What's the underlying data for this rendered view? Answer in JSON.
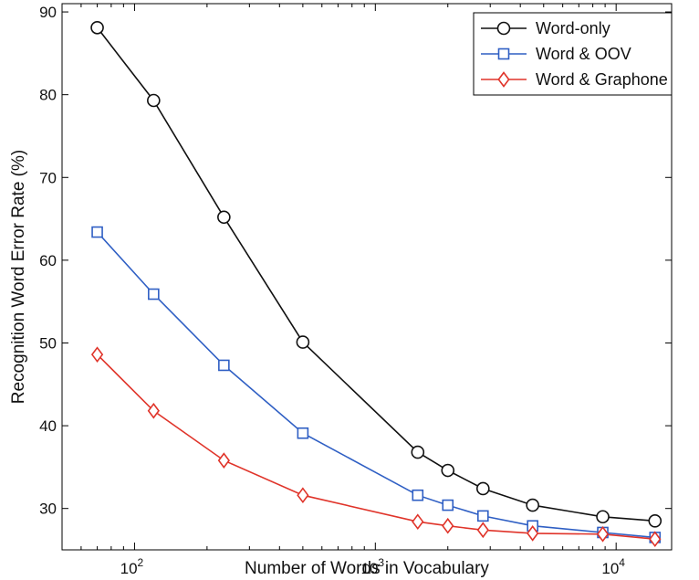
{
  "chart_data": {
    "type": "line",
    "xscale": "log",
    "xlim": [
      50,
      17000
    ],
    "ylim": [
      25,
      91
    ],
    "xlabel": "Number of Words in Vocabulary",
    "ylabel": "Recognition Word Error Rate (%)",
    "x_ticks": [
      100,
      1000,
      10000
    ],
    "x_tick_labels": [
      {
        "base": "10",
        "exp": "2"
      },
      {
        "base": "10",
        "exp": "3"
      },
      {
        "base": "10",
        "exp": "4"
      }
    ],
    "y_ticks": [
      30,
      40,
      50,
      60,
      70,
      80,
      90
    ],
    "y_tick_labels": [
      "30",
      "40",
      "50",
      "60",
      "70",
      "80",
      "90"
    ],
    "legend_position": "top-right",
    "x": [
      70,
      120,
      235,
      500,
      1500,
      2000,
      2800,
      4500,
      8800,
      14500
    ],
    "series": [
      {
        "name": "Word-only",
        "marker": "circle",
        "color": "#111111",
        "values": [
          88.1,
          79.3,
          65.2,
          50.1,
          36.8,
          34.6,
          32.4,
          30.4,
          29.0,
          28.5
        ]
      },
      {
        "name": "Word & OOV",
        "marker": "square",
        "color": "#2f5fc4",
        "values": [
          63.4,
          55.9,
          47.3,
          39.1,
          31.6,
          30.4,
          29.1,
          27.9,
          27.1,
          26.5
        ]
      },
      {
        "name": "Word & Graphone",
        "marker": "diamond",
        "color": "#e0342a",
        "values": [
          48.6,
          41.8,
          35.8,
          31.6,
          28.4,
          27.9,
          27.4,
          27.0,
          26.9,
          26.3
        ]
      }
    ]
  }
}
